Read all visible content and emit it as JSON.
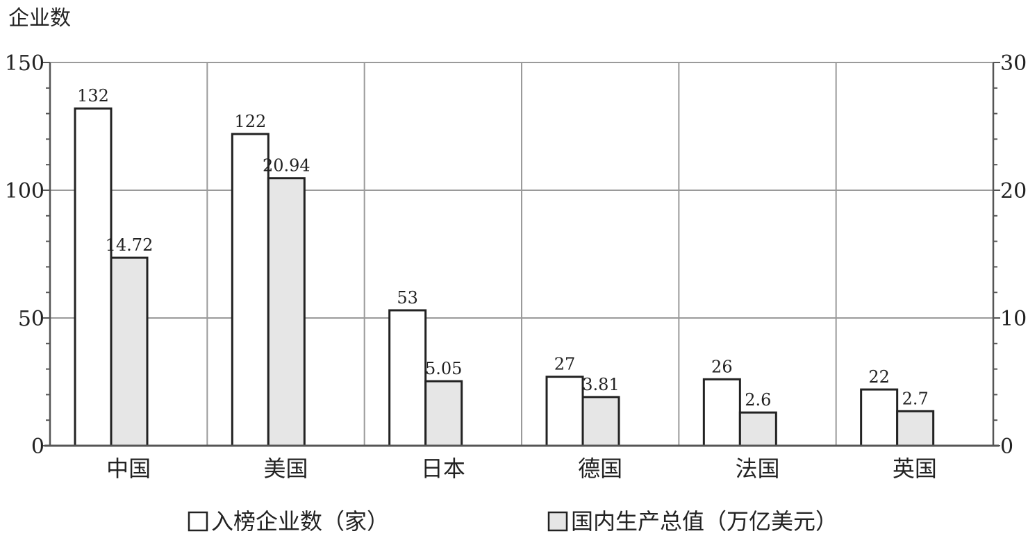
{
  "chart_data": {
    "type": "bar",
    "y_title_left": "企业数",
    "categories": [
      "中国",
      "美国",
      "日本",
      "德国",
      "法国",
      "英国"
    ],
    "series": [
      {
        "name": "入榜企业数（家）",
        "axis": "left",
        "values": [
          132,
          122,
          53,
          27,
          26,
          22
        ],
        "labels": [
          "132",
          "122",
          "53",
          "27",
          "26",
          "22"
        ],
        "color": "#ffffff"
      },
      {
        "name": "国内生产总值（万亿美元）",
        "axis": "right",
        "values": [
          14.72,
          20.94,
          5.05,
          3.81,
          2.6,
          2.7
        ],
        "labels": [
          "14.72",
          "20.94",
          "5.05",
          "3.81",
          "2.6",
          "2.7"
        ],
        "color": "#e6e6e6"
      }
    ],
    "ylim_left": [
      0,
      150
    ],
    "ylim_right": [
      0,
      30
    ],
    "yticks_left": [
      "0",
      "50",
      "100",
      "150"
    ],
    "yticks_right": [
      "0",
      "10",
      "20",
      "30"
    ],
    "grid": true,
    "legend_position": "bottom"
  }
}
